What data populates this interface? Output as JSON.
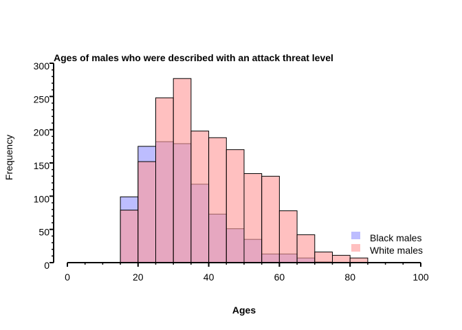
{
  "chart_data": {
    "type": "bar",
    "title": "Ages of males who were described with an attack threat level",
    "xlabel": "Ages",
    "ylabel": "Frequency",
    "xlim": [
      0,
      100
    ],
    "ylim": [
      0,
      300
    ],
    "x_ticks": [
      0,
      20,
      40,
      60,
      80,
      100
    ],
    "y_ticks": [
      0,
      50,
      100,
      150,
      200,
      250,
      300
    ],
    "bin_edges": [
      15,
      20,
      25,
      30,
      35,
      40,
      45,
      50,
      55,
      60,
      65,
      70,
      75,
      80,
      85
    ],
    "series": [
      {
        "name": "Black males",
        "color": "#9999ff",
        "values": [
          99,
          175,
          182,
          179,
          118,
          73,
          51,
          35,
          13,
          13,
          7,
          1,
          0,
          0
        ]
      },
      {
        "name": "White males",
        "color": "#ff9999",
        "values": [
          79,
          152,
          248,
          277,
          198,
          188,
          170,
          134,
          130,
          78,
          42,
          16,
          11,
          7
        ]
      }
    ],
    "legend_position": "bottom-right",
    "grid": false
  }
}
